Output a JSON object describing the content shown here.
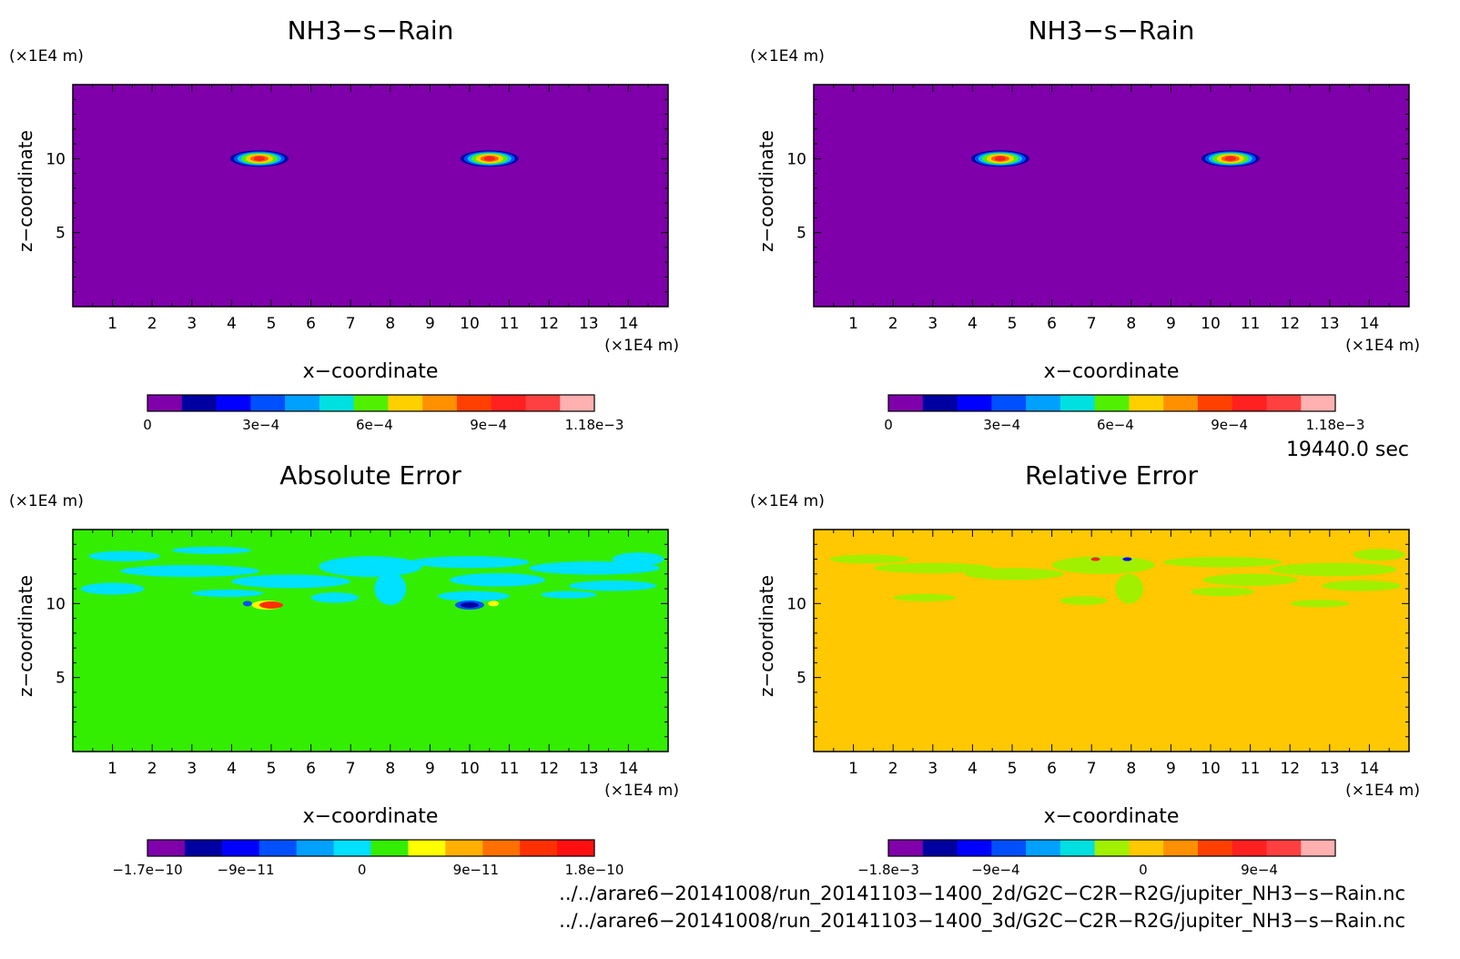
{
  "chart_data": [
    {
      "type": "heatmap",
      "title": "NH3−s−Rain",
      "xlabel": "x−coordinate",
      "ylabel": "z−coordinate",
      "x_unit": "(×1E4 m)",
      "y_unit": "(×1E4 m)",
      "xlim": [
        0,
        15
      ],
      "ylim": [
        0,
        15
      ],
      "xticks": [
        1,
        2,
        3,
        4,
        5,
        6,
        7,
        8,
        9,
        10,
        11,
        12,
        13,
        14
      ],
      "yticks": [
        5,
        10
      ],
      "background_color": "#7f00aa",
      "features": [
        {
          "x": 4.7,
          "z": 10.0,
          "peak": 0.0011
        },
        {
          "x": 10.5,
          "z": 10.0,
          "peak": 0.0011
        }
      ],
      "colorbar": {
        "colors": [
          "#7f00aa",
          "#0000a0",
          "#0000ff",
          "#0050ff",
          "#00a0ff",
          "#00e0e0",
          "#50f000",
          "#ffd000",
          "#ff9000",
          "#ff4000",
          "#ff2020",
          "#ff4040",
          "#ffb0b0"
        ],
        "tick_labels": [
          "0",
          "3e−4",
          "6e−4",
          "9e−4",
          "1.18e−3"
        ],
        "tick_positions": [
          0,
          0.254,
          0.508,
          0.763,
          1.0
        ]
      }
    },
    {
      "type": "heatmap",
      "title": "NH3−s−Rain",
      "xlabel": "x−coordinate",
      "ylabel": "z−coordinate",
      "x_unit": "(×1E4 m)",
      "y_unit": "(×1E4 m)",
      "xlim": [
        0,
        15
      ],
      "ylim": [
        0,
        15
      ],
      "xticks": [
        1,
        2,
        3,
        4,
        5,
        6,
        7,
        8,
        9,
        10,
        11,
        12,
        13,
        14
      ],
      "yticks": [
        5,
        10
      ],
      "background_color": "#7f00aa",
      "features": [
        {
          "x": 4.7,
          "z": 10.0,
          "peak": 0.0011
        },
        {
          "x": 10.5,
          "z": 10.0,
          "peak": 0.0011
        }
      ],
      "colorbar": {
        "colors": [
          "#7f00aa",
          "#0000a0",
          "#0000ff",
          "#0050ff",
          "#00a0ff",
          "#00e0e0",
          "#50f000",
          "#ffd000",
          "#ff9000",
          "#ff4000",
          "#ff2020",
          "#ff4040",
          "#ffb0b0"
        ],
        "tick_labels": [
          "0",
          "3e−4",
          "6e−4",
          "9e−4",
          "1.18e−3"
        ],
        "tick_positions": [
          0,
          0.254,
          0.508,
          0.763,
          1.0
        ]
      }
    },
    {
      "type": "heatmap",
      "title": "Absolute Error",
      "xlabel": "x−coordinate",
      "ylabel": "z−coordinate",
      "x_unit": "(×1E4 m)",
      "y_unit": "(×1E4 m)",
      "xlim": [
        0,
        15
      ],
      "ylim": [
        0,
        15
      ],
      "xticks": [
        1,
        2,
        3,
        4,
        5,
        6,
        7,
        8,
        9,
        10,
        11,
        12,
        13,
        14
      ],
      "yticks": [
        5,
        10
      ],
      "background_color": "#33ee00",
      "features": [
        {
          "x": 5.0,
          "z": 9.9,
          "value": 1.8e-10
        },
        {
          "x": 10.0,
          "z": 9.9,
          "value": -1.7e-10
        },
        {
          "x": 10.6,
          "z": 9.9,
          "value": 9e-11
        }
      ],
      "colorbar": {
        "colors": [
          "#7f00aa",
          "#0000a0",
          "#0000ff",
          "#0050ff",
          "#00a0ff",
          "#00e0ff",
          "#33ee00",
          "#ffff00",
          "#ffb000",
          "#ff7000",
          "#ff3000",
          "#ff1010"
        ],
        "tick_labels": [
          "−1.7e−10",
          "−9e−11",
          "0",
          "9e−11",
          "1.8e−10"
        ],
        "tick_positions": [
          0,
          0.22,
          0.48,
          0.735,
          1.0
        ]
      }
    },
    {
      "type": "heatmap",
      "title": "Relative Error",
      "xlabel": "x−coordinate",
      "ylabel": "z−coordinate",
      "x_unit": "(×1E4 m)",
      "y_unit": "(×1E4 m)",
      "xlim": [
        0,
        15
      ],
      "ylim": [
        0,
        15
      ],
      "xticks": [
        1,
        2,
        3,
        4,
        5,
        6,
        7,
        8,
        9,
        10,
        11,
        12,
        13,
        14
      ],
      "yticks": [
        5,
        10
      ],
      "background_color": "#ffc800",
      "features": [
        {
          "x": 7.1,
          "z": 13.0,
          "value": 0.001
        },
        {
          "x": 7.9,
          "z": 13.0,
          "value": -0.001
        }
      ],
      "colorbar": {
        "colors": [
          "#7f00aa",
          "#0000a0",
          "#0000ff",
          "#0050ff",
          "#00a0ff",
          "#00e0e0",
          "#a0f000",
          "#ffc800",
          "#ff9000",
          "#ff4000",
          "#ff2020",
          "#ff4040",
          "#ffb0b0"
        ],
        "tick_labels": [
          "−1.8e−3",
          "−9e−4",
          "0",
          "9e−4"
        ],
        "tick_positions": [
          0,
          0.24,
          0.57,
          0.83
        ]
      }
    }
  ],
  "time_label": "19440.0 sec",
  "footer": {
    "line1": "../../arare6−20141008/run_20141103−1400_2d/G2C−C2R−R2G/jupiter_NH3−s−Rain.nc",
    "line2": "../../arare6−20141008/run_20141103−1400_3d/G2C−C2R−R2G/jupiter_NH3−s−Rain.nc"
  }
}
